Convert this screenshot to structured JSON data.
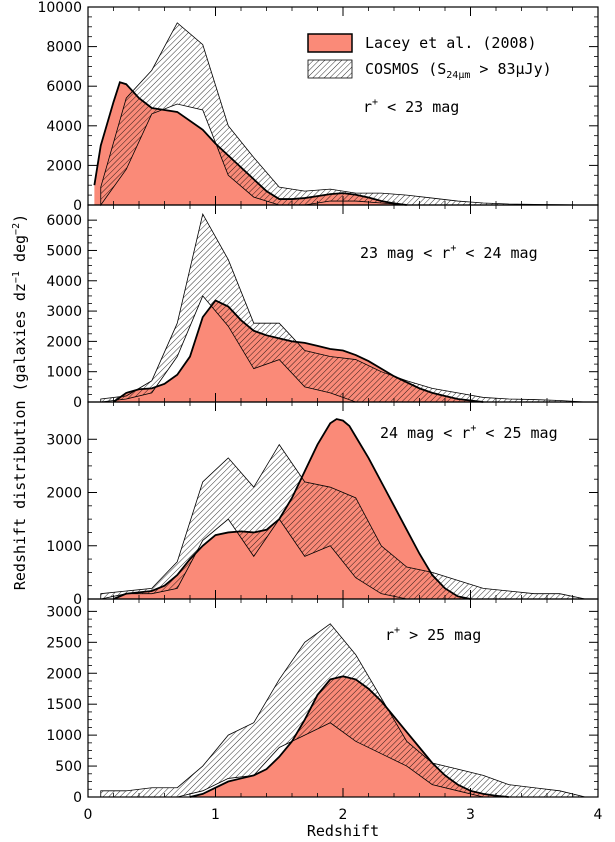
{
  "chart_data": {
    "type": "area",
    "xlabel": "Redshift",
    "ylabel": "Redshift distribution (galaxies dz⁻¹ deg⁻²)",
    "ylabel_parts": {
      "main": "Redshift distribution (galaxies dz",
      "exp1": "−1",
      "mid": " deg",
      "exp2": "−2",
      "end": ")"
    },
    "xlim": [
      0,
      4
    ],
    "x_ticks": [
      0,
      1,
      2,
      3,
      4
    ],
    "x_tick_labels": [
      "0",
      "1",
      "2",
      "3",
      "4"
    ],
    "legend": {
      "position": "top-right",
      "entries": [
        {
          "series": "model",
          "label": "Lacey et al. (2008)"
        },
        {
          "series": "cosmos",
          "label_parts": {
            "main": "COSMOS (S",
            "sub": "24μm",
            "rest": " > 83μJy)"
          }
        }
      ]
    },
    "colors": {
      "model_fill": "#fa8a78",
      "model_line": "#000000",
      "cosmos_hatch": "#000000",
      "frame": "#000000"
    },
    "panels": [
      {
        "label_parts": {
          "pre": "r",
          "sup": "+",
          "post": " < 23 mag"
        },
        "ylim": [
          0,
          10000
        ],
        "y_ticks": [
          0,
          2000,
          4000,
          6000,
          8000,
          10000
        ],
        "y_tick_labels": [
          "0",
          "2000",
          "4000",
          "6000",
          "8000",
          "10000"
        ],
        "show_legend": true,
        "model": {
          "x": [
            0.05,
            0.1,
            0.2,
            0.25,
            0.3,
            0.4,
            0.5,
            0.6,
            0.7,
            0.9,
            1.0,
            1.1,
            1.2,
            1.3,
            1.4,
            1.5,
            1.6,
            1.7,
            1.8,
            1.9,
            2.0,
            2.1,
            2.2,
            2.3,
            2.4,
            2.5
          ],
          "y": [
            1000,
            3000,
            5200,
            6200,
            6100,
            5400,
            4900,
            4800,
            4700,
            3800,
            3100,
            2500,
            1900,
            1300,
            700,
            300,
            300,
            350,
            450,
            550,
            600,
            520,
            380,
            200,
            80,
            0
          ]
        },
        "cosmos": {
          "x": [
            0.1,
            0.3,
            0.5,
            0.7,
            0.9,
            1.1,
            1.3,
            1.5,
            1.7,
            1.9,
            2.1,
            2.3,
            2.5,
            2.7,
            2.9,
            3.1,
            3.3,
            3.5,
            3.7,
            3.9
          ],
          "lower": [
            0,
            1800,
            4600,
            5100,
            4800,
            1500,
            400,
            0,
            0,
            200,
            200,
            100,
            0,
            0,
            0,
            0,
            0,
            0,
            0,
            0
          ],
          "upper": [
            900,
            5400,
            6800,
            9200,
            8100,
            4000,
            2400,
            900,
            700,
            800,
            600,
            600,
            500,
            350,
            200,
            100,
            50,
            30,
            20,
            0
          ]
        }
      },
      {
        "label_parts": {
          "pre": "23 mag < r",
          "sup": "+",
          "post": " < 24 mag"
        },
        "ylim": [
          0,
          6500
        ],
        "y_ticks": [
          0,
          1000,
          2000,
          3000,
          4000,
          5000,
          6000
        ],
        "y_tick_labels": [
          "0",
          "1000",
          "2000",
          "3000",
          "4000",
          "5000",
          "6000"
        ],
        "show_legend": false,
        "model": {
          "x": [
            0.2,
            0.3,
            0.4,
            0.5,
            0.6,
            0.7,
            0.8,
            0.9,
            1.0,
            1.1,
            1.2,
            1.3,
            1.4,
            1.5,
            1.6,
            1.7,
            1.8,
            1.9,
            2.0,
            2.1,
            2.2,
            2.3,
            2.4,
            2.5,
            2.6,
            2.7,
            2.8,
            2.9,
            3.0,
            3.1
          ],
          "y": [
            0,
            300,
            420,
            450,
            600,
            900,
            1500,
            2800,
            3350,
            3150,
            2700,
            2350,
            2200,
            2100,
            2000,
            1950,
            1850,
            1750,
            1700,
            1550,
            1350,
            1100,
            850,
            650,
            450,
            300,
            200,
            100,
            50,
            0
          ]
        },
        "cosmos": {
          "x": [
            0.1,
            0.3,
            0.5,
            0.7,
            0.9,
            1.1,
            1.3,
            1.5,
            1.7,
            1.9,
            2.1,
            2.3,
            2.5,
            2.7,
            2.9,
            3.1,
            3.3,
            3.5,
            3.7,
            3.9
          ],
          "lower": [
            0,
            100,
            300,
            1500,
            3500,
            2500,
            1100,
            1400,
            500,
            300,
            0,
            0,
            0,
            0,
            0,
            0,
            0,
            0,
            0,
            0
          ],
          "upper": [
            100,
            200,
            700,
            2600,
            6200,
            4700,
            2600,
            2600,
            1700,
            1500,
            1400,
            1000,
            700,
            450,
            300,
            150,
            100,
            80,
            50,
            0
          ]
        }
      },
      {
        "label_parts": {
          "pre": "24 mag < r",
          "sup": "+",
          "post": " < 25 mag"
        },
        "ylim": [
          0,
          3700
        ],
        "y_ticks": [
          0,
          1000,
          2000,
          3000
        ],
        "y_tick_labels": [
          "0",
          "1000",
          "2000",
          "3000"
        ],
        "show_legend": false,
        "model": {
          "x": [
            0.2,
            0.3,
            0.5,
            0.6,
            0.7,
            0.8,
            0.9,
            1.0,
            1.1,
            1.2,
            1.3,
            1.4,
            1.5,
            1.6,
            1.7,
            1.8,
            1.9,
            1.95,
            2.0,
            2.05,
            2.1,
            2.2,
            2.3,
            2.4,
            2.5,
            2.6,
            2.7,
            2.8,
            2.9,
            3.0
          ],
          "y": [
            0,
            100,
            150,
            250,
            450,
            750,
            1000,
            1200,
            1250,
            1270,
            1250,
            1300,
            1500,
            1900,
            2400,
            2900,
            3300,
            3380,
            3350,
            3250,
            3050,
            2650,
            2200,
            1750,
            1300,
            850,
            450,
            200,
            50,
            0
          ]
        },
        "cosmos": {
          "x": [
            0.1,
            0.3,
            0.5,
            0.7,
            0.9,
            1.1,
            1.3,
            1.5,
            1.7,
            1.9,
            2.1,
            2.3,
            2.5,
            2.7,
            2.9,
            3.1,
            3.3,
            3.5,
            3.7,
            3.9
          ],
          "lower": [
            0,
            100,
            100,
            200,
            1100,
            1500,
            800,
            1500,
            800,
            1000,
            400,
            100,
            0,
            0,
            0,
            0,
            0,
            0,
            0,
            0
          ],
          "upper": [
            100,
            150,
            200,
            700,
            2200,
            2650,
            2100,
            2900,
            2200,
            2100,
            1900,
            1000,
            600,
            500,
            350,
            200,
            150,
            100,
            100,
            0
          ]
        }
      },
      {
        "label_parts": {
          "pre": "r",
          "sup": "+",
          "post": " > 25 mag"
        },
        "ylim": [
          0,
          3200
        ],
        "y_ticks": [
          0,
          500,
          1000,
          1500,
          2000,
          2500,
          3000
        ],
        "y_tick_labels": [
          "0",
          "500",
          "1000",
          "1500",
          "2000",
          "2500",
          "3000"
        ],
        "show_legend": false,
        "model": {
          "x": [
            0.8,
            0.9,
            1.0,
            1.1,
            1.2,
            1.3,
            1.4,
            1.5,
            1.6,
            1.7,
            1.8,
            1.9,
            2.0,
            2.1,
            2.2,
            2.3,
            2.4,
            2.5,
            2.6,
            2.7,
            2.8,
            2.9,
            3.0,
            3.1,
            3.2,
            3.3
          ],
          "y": [
            0,
            50,
            150,
            250,
            300,
            350,
            450,
            650,
            900,
            1250,
            1650,
            1900,
            1950,
            1900,
            1750,
            1550,
            1300,
            1050,
            800,
            550,
            350,
            200,
            100,
            50,
            20,
            0
          ]
        },
        "cosmos": {
          "x": [
            0.1,
            0.3,
            0.5,
            0.7,
            0.9,
            1.1,
            1.3,
            1.5,
            1.7,
            1.9,
            2.1,
            2.3,
            2.5,
            2.7,
            2.9,
            3.1,
            3.3,
            3.5,
            3.7,
            3.9
          ],
          "lower": [
            0,
            0,
            0,
            0,
            100,
            300,
            350,
            800,
            1000,
            1200,
            900,
            700,
            500,
            200,
            100,
            0,
            0,
            0,
            0,
            0
          ],
          "upper": [
            100,
            100,
            150,
            150,
            500,
            1000,
            1200,
            1900,
            2500,
            2800,
            2300,
            1600,
            900,
            550,
            450,
            350,
            200,
            150,
            100,
            0
          ]
        }
      }
    ]
  }
}
